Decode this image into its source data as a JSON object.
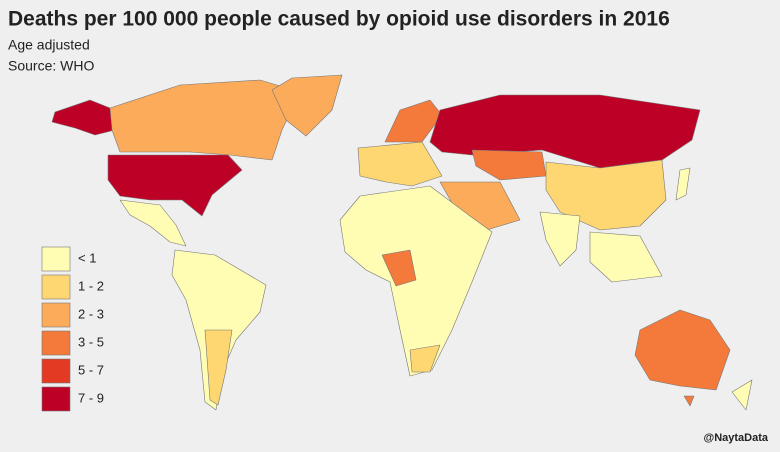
{
  "header": {
    "title": "Deaths per 100 000 people caused by opioid use disorders in 2016",
    "subtitle": "Age adjusted",
    "source": "Source: WHO"
  },
  "legend": [
    {
      "label": "< 1",
      "color": "#fffdb4"
    },
    {
      "label": "1 - 2",
      "color": "#fed672"
    },
    {
      "label": "2 - 3",
      "color": "#fcab5a"
    },
    {
      "label": "3 - 5",
      "color": "#f47a3b"
    },
    {
      "label": "5 - 7",
      "color": "#e33a23"
    },
    {
      "label": "7 - 9",
      "color": "#bd0026"
    }
  ],
  "credit": "@NaytaData"
}
